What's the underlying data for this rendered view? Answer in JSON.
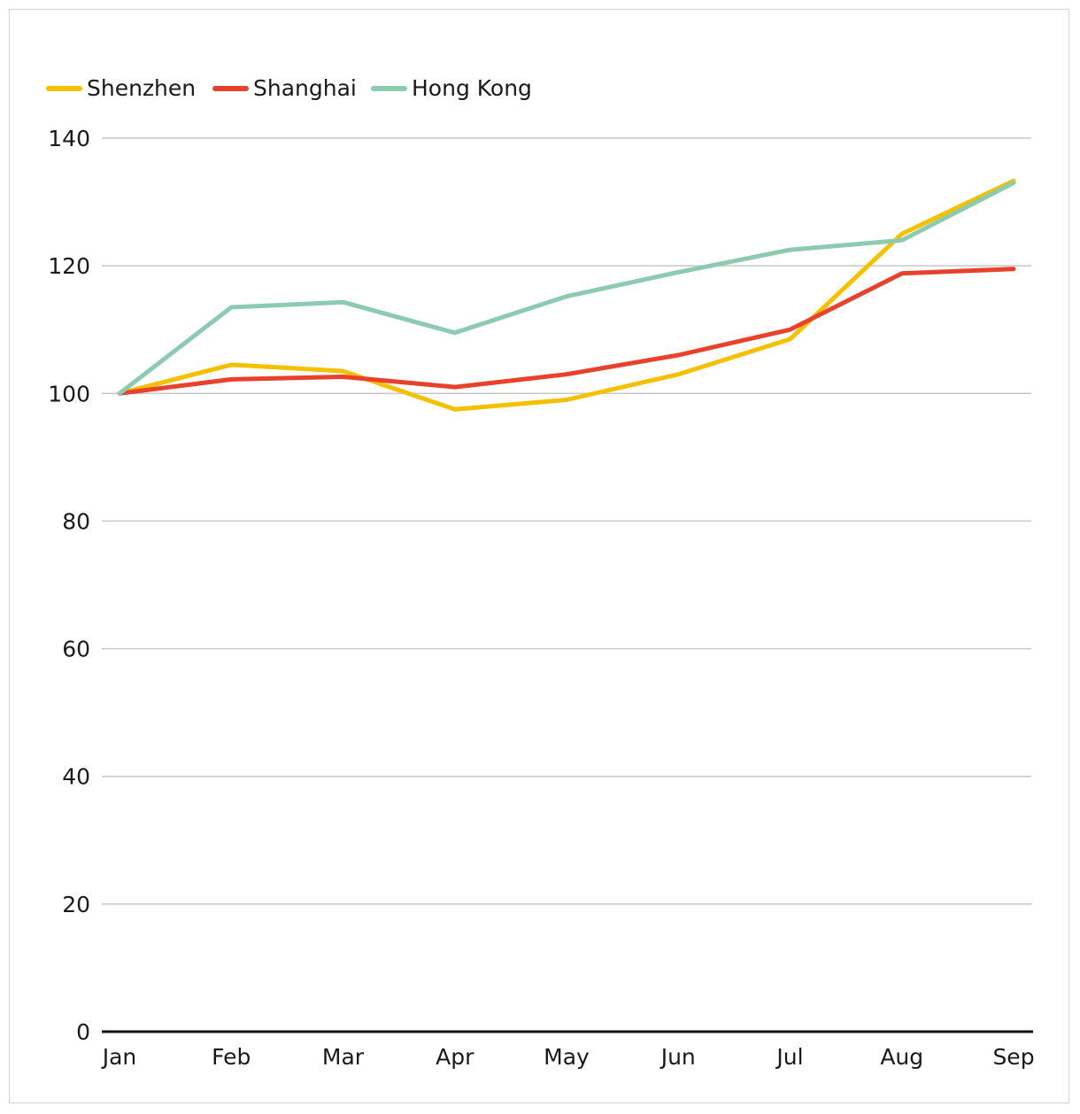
{
  "chart_data": {
    "type": "line",
    "title": "",
    "xlabel": "",
    "ylabel": "",
    "categories": [
      "Jan",
      "Feb",
      "Mar",
      "Apr",
      "May",
      "Jun",
      "Jul",
      "Aug",
      "Sep"
    ],
    "ylim": [
      0,
      140
    ],
    "yticks": [
      0,
      20,
      40,
      60,
      80,
      100,
      120,
      140
    ],
    "grid": true,
    "legend_position": "top-left",
    "series": [
      {
        "name": "Shenzhen",
        "color": "#F5C000",
        "values": [
          100,
          104.5,
          103.5,
          97.5,
          99,
          103,
          108.5,
          125,
          133.3
        ]
      },
      {
        "name": "Shanghai",
        "color": "#E8412C",
        "values": [
          100,
          102.2,
          102.6,
          101,
          103,
          106,
          110,
          118.8,
          119.5
        ]
      },
      {
        "name": "Hong Kong",
        "color": "#8DCBB0",
        "values": [
          100,
          113.5,
          114.3,
          109.5,
          115.2,
          119,
          122.5,
          124,
          133
        ]
      }
    ]
  }
}
